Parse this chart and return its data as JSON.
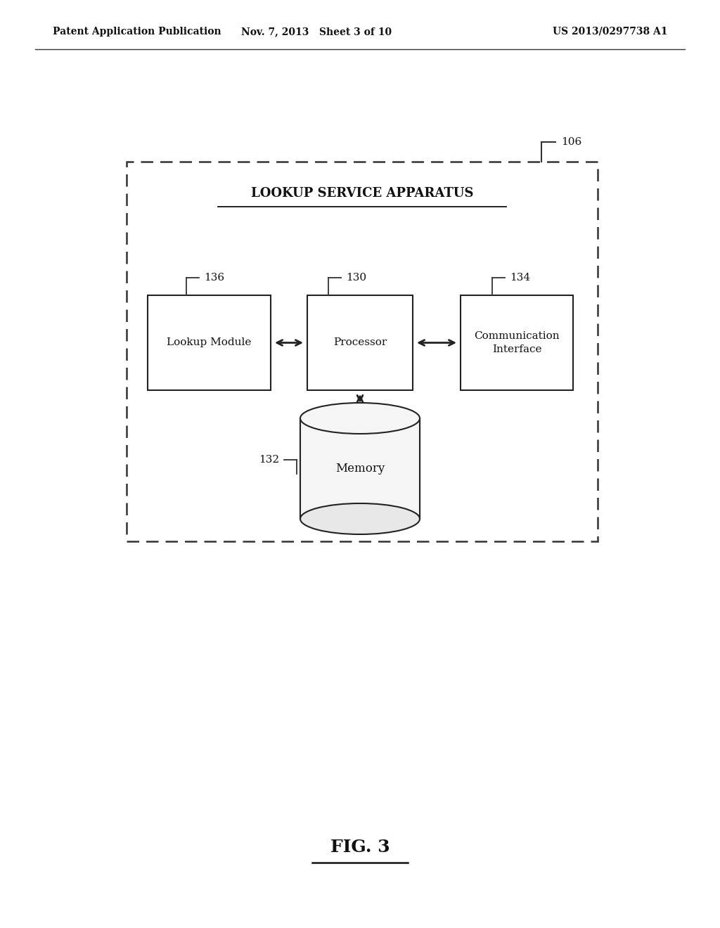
{
  "bg_color": "#ffffff",
  "header_left": "Patent Application Publication",
  "header_mid": "Nov. 7, 2013   Sheet 3 of 10",
  "header_right": "US 2013/0297738 A1",
  "fig_label": "FIG. 3",
  "outer_box_label": "106",
  "title_text": "LOOKUP SERVICE APPARATUS",
  "box_lookup_label": "Lookup Module",
  "box_lookup_ref": "136",
  "box_processor_label": "Processor",
  "box_processor_ref": "130",
  "box_comm_label": "Communication\nInterface",
  "box_comm_ref": "134",
  "cylinder_label": "Memory",
  "cylinder_ref": "132"
}
